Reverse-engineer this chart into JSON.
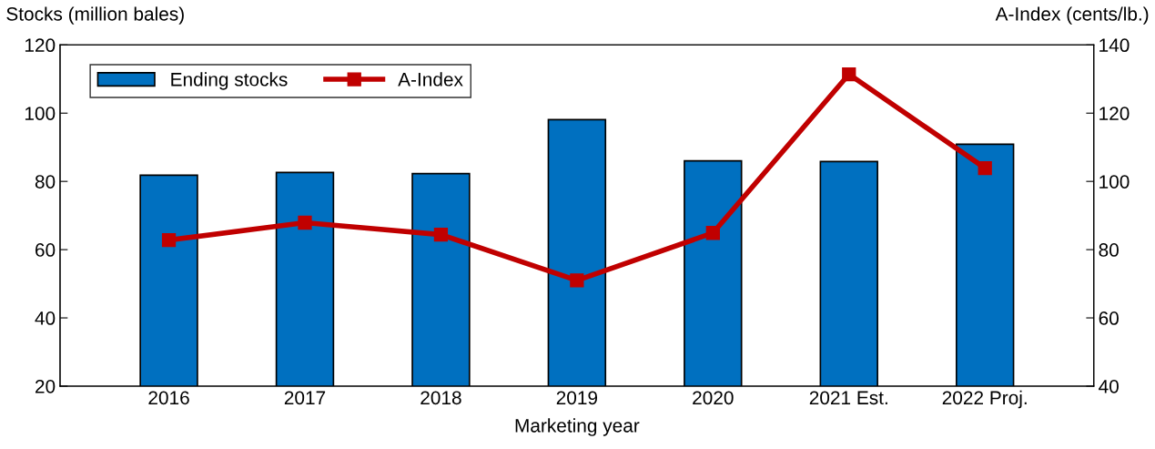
{
  "chart_data": {
    "type": "bar",
    "ylabel": "Stocks (million bales)",
    "y2label": "A-Index (cents/lb.)",
    "xlabel": "Marketing year",
    "categories": [
      "2016",
      "2017",
      "2018",
      "2019",
      "2020",
      "2021 Est.",
      "2022 Proj."
    ],
    "series": [
      {
        "name": "Ending stocks",
        "color": "#0070c0",
        "values": [
          81.8,
          82.6,
          82.3,
          98.1,
          86.0,
          85.8,
          90.9
        ]
      },
      {
        "name": "A-Index",
        "type": "line",
        "axis": "y2",
        "color": "#c00000",
        "marker": "square",
        "values": [
          82.8,
          87.9,
          84.4,
          71.0,
          84.9,
          131.4,
          103.9
        ]
      }
    ],
    "ylim": [
      20,
      120
    ],
    "yticks": [
      20,
      40,
      60,
      80,
      100,
      120
    ],
    "y2lim": [
      40,
      140
    ],
    "y2ticks": [
      40,
      60,
      80,
      100,
      120,
      140
    ],
    "legend": "top left",
    "grid": false
  }
}
